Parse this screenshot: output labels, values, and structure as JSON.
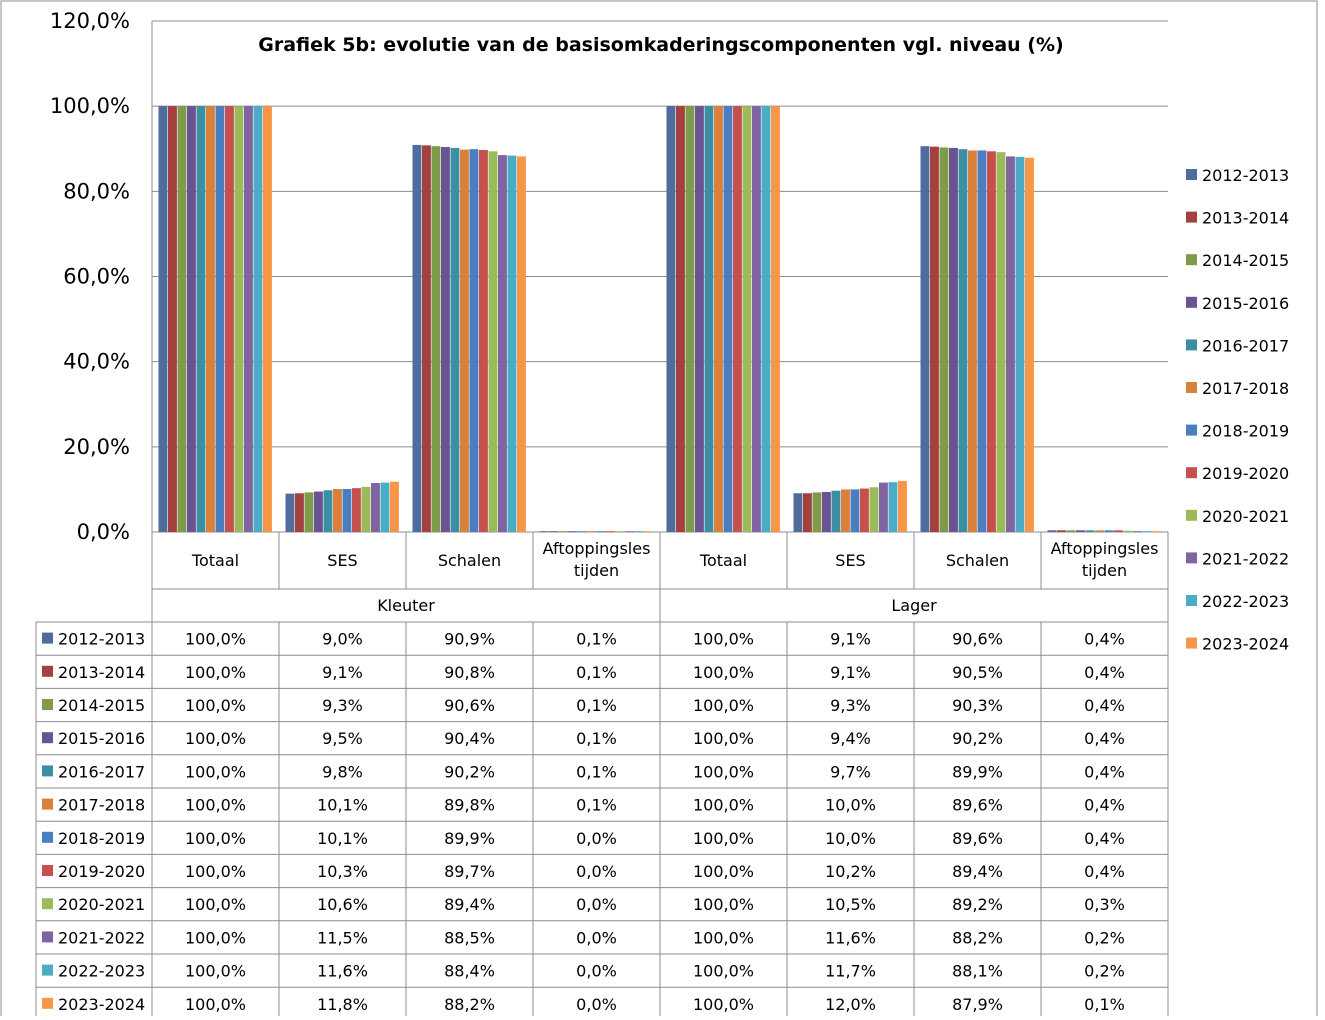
{
  "chart_data": {
    "type": "bar",
    "title": "Grafiek 5b: evolutie van de basisomkaderingscomponenten vgl. niveau (%)",
    "xlabel": "",
    "ylabel": "",
    "ylim": [
      0,
      120
    ],
    "y_ticks": [
      "0,0%",
      "20,0%",
      "40,0%",
      "60,0%",
      "80,0%",
      "100,0%",
      "120,0%"
    ],
    "y_tick_values": [
      0,
      20,
      40,
      60,
      80,
      100,
      120
    ],
    "grid": true,
    "legend_position": "right",
    "groups": [
      "Kleuter",
      "Lager"
    ],
    "category_labels": [
      [
        "Totaal"
      ],
      [
        "SES"
      ],
      [
        "Schalen"
      ],
      [
        "Aftoppingsles",
        "tijden"
      ]
    ],
    "categories": [
      "Totaal",
      "SES",
      "Schalen",
      "Aftoppingsles tijden",
      "Totaal",
      "SES",
      "Schalen",
      "Aftoppingsles tijden"
    ],
    "series": [
      {
        "name": "2012-2013",
        "color": "#4F6D9C",
        "values": [
          100.0,
          9.0,
          90.9,
          0.1,
          100.0,
          9.1,
          90.6,
          0.4
        ],
        "labels": [
          "100,0%",
          "9,0%",
          "90,9%",
          "0,1%",
          "100,0%",
          "9,1%",
          "90,6%",
          "0,4%"
        ]
      },
      {
        "name": "2013-2014",
        "color": "#A4403E",
        "values": [
          100.0,
          9.1,
          90.8,
          0.1,
          100.0,
          9.1,
          90.5,
          0.4
        ],
        "labels": [
          "100,0%",
          "9,1%",
          "90,8%",
          "0,1%",
          "100,0%",
          "9,1%",
          "90,5%",
          "0,4%"
        ]
      },
      {
        "name": "2014-2015",
        "color": "#7E9B4A",
        "values": [
          100.0,
          9.3,
          90.6,
          0.1,
          100.0,
          9.3,
          90.3,
          0.4
        ],
        "labels": [
          "100,0%",
          "9,3%",
          "90,6%",
          "0,1%",
          "100,0%",
          "9,3%",
          "90,3%",
          "0,4%"
        ]
      },
      {
        "name": "2015-2016",
        "color": "#6A5393",
        "values": [
          100.0,
          9.5,
          90.4,
          0.1,
          100.0,
          9.4,
          90.2,
          0.4
        ],
        "labels": [
          "100,0%",
          "9,5%",
          "90,4%",
          "0,1%",
          "100,0%",
          "9,4%",
          "90,2%",
          "0,4%"
        ]
      },
      {
        "name": "2016-2017",
        "color": "#3C8EA3",
        "values": [
          100.0,
          9.8,
          90.2,
          0.1,
          100.0,
          9.7,
          89.9,
          0.4
        ],
        "labels": [
          "100,0%",
          "9,8%",
          "90,2%",
          "0,1%",
          "100,0%",
          "9,7%",
          "89,9%",
          "0,4%"
        ]
      },
      {
        "name": "2017-2018",
        "color": "#D9803A",
        "values": [
          100.0,
          10.1,
          89.8,
          0.1,
          100.0,
          10.0,
          89.6,
          0.4
        ],
        "labels": [
          "100,0%",
          "10,1%",
          "89,8%",
          "0,1%",
          "100,0%",
          "10,0%",
          "89,6%",
          "0,4%"
        ]
      },
      {
        "name": "2018-2019",
        "color": "#4A7EC1",
        "values": [
          100.0,
          10.1,
          89.9,
          0.0,
          100.0,
          10.0,
          89.6,
          0.4
        ],
        "labels": [
          "100,0%",
          "10,1%",
          "89,9%",
          "0,0%",
          "100,0%",
          "10,0%",
          "89,6%",
          "0,4%"
        ]
      },
      {
        "name": "2019-2020",
        "color": "#C6504E",
        "values": [
          100.0,
          10.3,
          89.7,
          0.0,
          100.0,
          10.2,
          89.4,
          0.4
        ],
        "labels": [
          "100,0%",
          "10,3%",
          "89,7%",
          "0,0%",
          "100,0%",
          "10,2%",
          "89,4%",
          "0,4%"
        ]
      },
      {
        "name": "2020-2021",
        "color": "#9BBB59",
        "values": [
          100.0,
          10.6,
          89.4,
          0.0,
          100.0,
          10.5,
          89.2,
          0.3
        ],
        "labels": [
          "100,0%",
          "10,6%",
          "89,4%",
          "0,0%",
          "100,0%",
          "10,5%",
          "89,2%",
          "0,3%"
        ]
      },
      {
        "name": "2021-2022",
        "color": "#8064A2",
        "values": [
          100.0,
          11.5,
          88.5,
          0.0,
          100.0,
          11.6,
          88.2,
          0.2
        ],
        "labels": [
          "100,0%",
          "11,5%",
          "88,5%",
          "0,0%",
          "100,0%",
          "11,6%",
          "88,2%",
          "0,2%"
        ]
      },
      {
        "name": "2022-2023",
        "color": "#4BACC6",
        "values": [
          100.0,
          11.6,
          88.4,
          0.0,
          100.0,
          11.7,
          88.1,
          0.2
        ],
        "labels": [
          "100,0%",
          "11,6%",
          "88,4%",
          "0,0%",
          "100,0%",
          "11,7%",
          "88,1%",
          "0,2%"
        ]
      },
      {
        "name": "2023-2024",
        "color": "#F79646",
        "values": [
          100.0,
          11.8,
          88.2,
          0.0,
          100.0,
          12.0,
          87.9,
          0.1
        ],
        "labels": [
          "100,0%",
          "11,8%",
          "88,2%",
          "0,0%",
          "100,0%",
          "12,0%",
          "87,9%",
          "0,1%"
        ]
      }
    ]
  }
}
